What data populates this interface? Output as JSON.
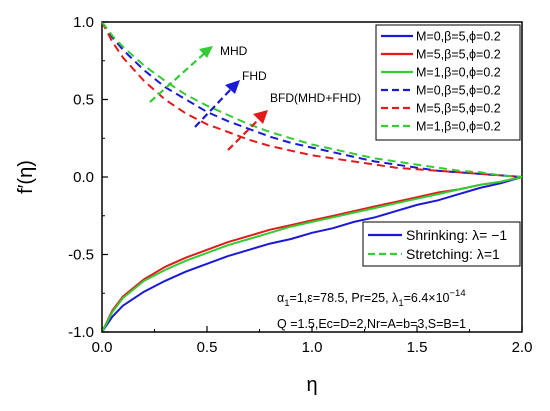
{
  "chart_data": {
    "type": "line",
    "xlabel": "η",
    "ylabel": "f′(η)",
    "xlim": [
      0.0,
      2.0
    ],
    "ylim": [
      -1.0,
      1.0
    ],
    "x_ticks": [
      "0.0",
      "0.5",
      "1.0",
      "1.5",
      "2.0"
    ],
    "y_ticks": [
      "-1.0",
      "-0.5",
      "0.0",
      "0.5",
      "1.0"
    ],
    "x_tick_values": [
      0.0,
      0.5,
      1.0,
      1.5,
      2.0
    ],
    "y_tick_values": [
      -1.0,
      -0.5,
      0.0,
      0.5,
      1.0
    ],
    "legend_top": [
      {
        "label": "M=0,β=5,ϕ=0.2",
        "color": "#1a1ad6",
        "dash": false
      },
      {
        "label": "M=5,β=5,ϕ=0.2",
        "color": "#e01b1b",
        "dash": false
      },
      {
        "label": "M=1,β=0,ϕ=0.2",
        "color": "#33cc33",
        "dash": false
      },
      {
        "label": "M=0,β=5,ϕ=0.2",
        "color": "#1a1ad6",
        "dash": true
      },
      {
        "label": "M=5,β=5,ϕ=0.2",
        "color": "#e01b1b",
        "dash": true
      },
      {
        "label": "M=1,β=0,ϕ=0.2",
        "color": "#33cc33",
        "dash": true
      }
    ],
    "legend_bottom": [
      {
        "label": "Shrinking: λ= −1",
        "color": "#1a1ad6",
        "dash": false
      },
      {
        "label": "Stretching: λ=1",
        "color": "#33cc33",
        "dash": true
      }
    ],
    "series": [
      {
        "color": "#1a1ad6",
        "dash": false,
        "x": [
          0,
          0.05,
          0.1,
          0.2,
          0.3,
          0.4,
          0.5,
          0.6,
          0.7,
          0.8,
          0.9,
          1.0,
          1.1,
          1.2,
          1.3,
          1.4,
          1.5,
          1.6,
          1.7,
          1.8,
          1.9,
          2.0
        ],
        "y": [
          -1.0,
          -0.9,
          -0.83,
          -0.74,
          -0.67,
          -0.61,
          -0.56,
          -0.51,
          -0.47,
          -0.43,
          -0.4,
          -0.36,
          -0.33,
          -0.29,
          -0.26,
          -0.22,
          -0.18,
          -0.15,
          -0.11,
          -0.07,
          -0.04,
          0.0
        ]
      },
      {
        "color": "#e01b1b",
        "dash": false,
        "x": [
          0,
          0.05,
          0.1,
          0.2,
          0.3,
          0.4,
          0.5,
          0.6,
          0.7,
          0.8,
          0.9,
          1.0,
          1.1,
          1.2,
          1.3,
          1.4,
          1.5,
          1.6,
          1.7,
          1.8,
          1.9,
          2.0
        ],
        "y": [
          -1.0,
          -0.86,
          -0.77,
          -0.66,
          -0.58,
          -0.52,
          -0.47,
          -0.42,
          -0.38,
          -0.34,
          -0.31,
          -0.28,
          -0.25,
          -0.22,
          -0.19,
          -0.16,
          -0.13,
          -0.1,
          -0.08,
          -0.05,
          -0.03,
          0.0
        ]
      },
      {
        "color": "#33cc33",
        "dash": false,
        "x": [
          0,
          0.05,
          0.1,
          0.2,
          0.3,
          0.4,
          0.5,
          0.6,
          0.7,
          0.8,
          0.9,
          1.0,
          1.1,
          1.2,
          1.3,
          1.4,
          1.5,
          1.6,
          1.7,
          1.8,
          1.9,
          2.0
        ],
        "y": [
          -1.0,
          -0.87,
          -0.78,
          -0.67,
          -0.6,
          -0.54,
          -0.49,
          -0.44,
          -0.4,
          -0.36,
          -0.32,
          -0.29,
          -0.26,
          -0.23,
          -0.2,
          -0.17,
          -0.14,
          -0.11,
          -0.08,
          -0.05,
          -0.03,
          0.0
        ]
      },
      {
        "color": "#1a1ad6",
        "dash": true,
        "x": [
          0,
          0.05,
          0.1,
          0.2,
          0.3,
          0.4,
          0.5,
          0.6,
          0.7,
          0.8,
          0.9,
          1.0,
          1.1,
          1.2,
          1.3,
          1.4,
          1.5,
          1.6,
          1.7,
          1.8,
          1.9,
          2.0
        ],
        "y": [
          1.0,
          0.9,
          0.82,
          0.69,
          0.58,
          0.5,
          0.42,
          0.36,
          0.31,
          0.26,
          0.22,
          0.19,
          0.16,
          0.13,
          0.1,
          0.08,
          0.06,
          0.04,
          0.03,
          0.02,
          0.01,
          0.0
        ]
      },
      {
        "color": "#e01b1b",
        "dash": true,
        "x": [
          0,
          0.05,
          0.1,
          0.2,
          0.3,
          0.4,
          0.5,
          0.6,
          0.7,
          0.8,
          0.9,
          1.0,
          1.1,
          1.2,
          1.3,
          1.4,
          1.5,
          1.6,
          1.7,
          1.8,
          1.9,
          2.0
        ],
        "y": [
          1.0,
          0.87,
          0.77,
          0.62,
          0.5,
          0.41,
          0.34,
          0.29,
          0.24,
          0.2,
          0.17,
          0.14,
          0.12,
          0.1,
          0.08,
          0.06,
          0.05,
          0.04,
          0.03,
          0.02,
          0.01,
          0.0
        ]
      },
      {
        "color": "#33cc33",
        "dash": true,
        "x": [
          0,
          0.05,
          0.1,
          0.2,
          0.3,
          0.4,
          0.5,
          0.6,
          0.7,
          0.8,
          0.9,
          1.0,
          1.1,
          1.2,
          1.3,
          1.4,
          1.5,
          1.6,
          1.7,
          1.8,
          1.9,
          2.0
        ],
        "y": [
          1.0,
          0.91,
          0.84,
          0.72,
          0.62,
          0.53,
          0.46,
          0.4,
          0.34,
          0.29,
          0.25,
          0.21,
          0.18,
          0.15,
          0.12,
          0.1,
          0.08,
          0.06,
          0.04,
          0.03,
          0.01,
          0.0
        ]
      }
    ],
    "annotations": [
      {
        "text": "MHD",
        "color": "#33cc33"
      },
      {
        "text": "FHD",
        "color": "#1a1ad6"
      },
      {
        "text": "BFD(MHD+FHD)",
        "color": "#e01b1b"
      }
    ],
    "params_line1": "α",
    "params_line1_sub1": "1",
    "params_line1_mid": "=1,ε=78.5, Pr=25, λ",
    "params_line1_sub2": "1",
    "params_line1_end": "=6.4×10",
    "params_line1_sup": "−14",
    "params_line2": "Q =1.5,Ec=D=2,Nr=A=b=3,S=B=1"
  }
}
